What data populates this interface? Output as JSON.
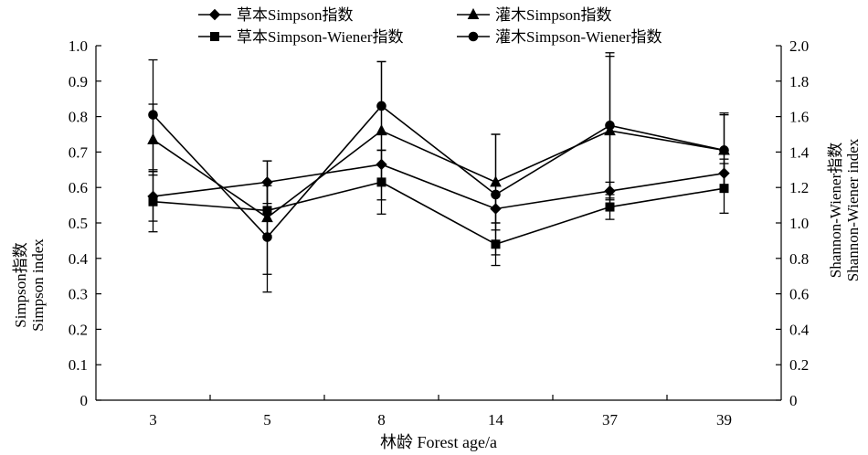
{
  "chart_data": {
    "type": "line",
    "categories": [
      "3",
      "5",
      "8",
      "14",
      "37",
      "39"
    ],
    "xlabel": "林龄 Forest age/a",
    "ylabel_left": [
      "Simpson指数",
      "Simpson index"
    ],
    "ylabel_right": [
      "Shannon-Wiener指数",
      "Shannon-Wiener index"
    ],
    "ylim_left": [
      0,
      1.0
    ],
    "yticks_left": [
      "0",
      "0.1",
      "0.2",
      "0.3",
      "0.4",
      "0.5",
      "0.6",
      "0.7",
      "0.8",
      "0.9",
      "1.0"
    ],
    "ylim_right": [
      0,
      2.0
    ],
    "yticks_right": [
      "0",
      "0.2",
      "0.4",
      "0.6",
      "0.8",
      "1.0",
      "1.2",
      "1.4",
      "1.6",
      "1.8",
      "2.0"
    ],
    "grid": false,
    "legend_position": "top",
    "series": [
      {
        "name": "草本Simpson指数",
        "axis": "left",
        "marker": "diamond",
        "values": [
          0.575,
          0.615,
          0.665,
          0.54,
          0.59,
          0.64
        ],
        "error": [
          0.07,
          0.06,
          0.04,
          0.04,
          0.025,
          0.04
        ]
      },
      {
        "name": "灌木Simpson指数",
        "axis": "left",
        "marker": "triangle",
        "values": [
          0.735,
          0.515,
          0.76,
          0.615,
          0.76,
          0.705
        ],
        "error": [
          0.1,
          0.16,
          0.195,
          0.135,
          0.21,
          0.1
        ]
      },
      {
        "name": "草本Simpson-Wiener指数",
        "axis": "right",
        "marker": "square",
        "values": [
          1.12,
          1.07,
          1.23,
          0.88,
          1.09,
          1.195
        ],
        "error": [
          0.17,
          0.14,
          0.18,
          0.12,
          0.07,
          0.14
        ]
      },
      {
        "name": "灌木Simpson-Wiener指数",
        "axis": "right",
        "marker": "circle",
        "values": [
          1.61,
          0.92,
          1.66,
          1.16,
          1.55,
          1.41
        ],
        "error": [
          0.31,
          0.31,
          0.25,
          0.34,
          0.41,
          0.21
        ]
      }
    ]
  }
}
